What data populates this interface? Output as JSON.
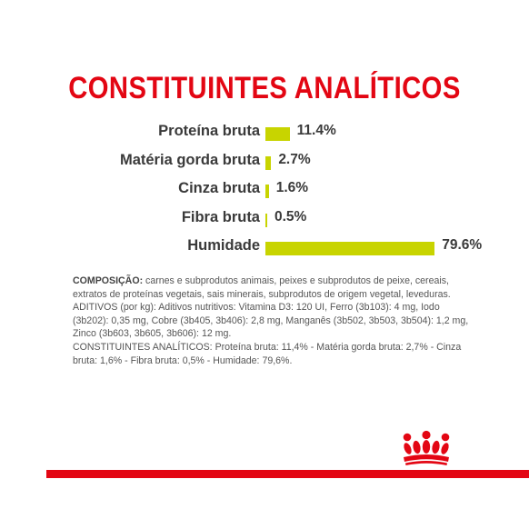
{
  "title": "CONSTITUINTES ANALÍTICOS",
  "colors": {
    "title": "#e30613",
    "bar": "#c8d400",
    "text": "#3a3a3a",
    "brand_red": "#e30613"
  },
  "chart_data": {
    "type": "bar",
    "orientation": "horizontal",
    "title": "CONSTITUINTES ANALÍTICOS",
    "categories": [
      "Proteína bruta",
      "Matéria gorda bruta",
      "Cinza bruta",
      "Fibra bruta",
      "Humidade"
    ],
    "values": [
      11.4,
      2.7,
      1.6,
      0.5,
      79.6
    ],
    "value_labels": [
      "11.4%",
      "2.7%",
      "1.6%",
      "0.5%",
      "79.6%"
    ],
    "unit": "%",
    "grid": false,
    "legend": "none"
  },
  "composition": {
    "label": "COMPOSIÇÃO:",
    "text": " carnes e subprodutos animais, peixes e subprodutos de peixe, cereais, extratos de proteínas vegetais, sais minerais, subprodutos de origem vegetal, leveduras.",
    "additives": "ADITIVOS (por kg): Aditivos nutritivos: Vitamina D3: 120 UI, Ferro (3b103): 4 mg, Iodo (3b202): 0,35 mg, Cobre (3b405, 3b406): 2,8 mg, Manganês (3b502, 3b503, 3b504): 1,2 mg, Zinco (3b603, 3b605, 3b606): 12 mg.",
    "analytical": "CONSTITUINTES ANALÍTICOS: Proteína bruta: 11,4% - Matéria gorda bruta: 2,7% - Cinza bruta: 1,6% - Fibra bruta: 0,5% - Humidade: 79,6%."
  },
  "brand": {
    "icon": "royal-canin-crown-icon"
  }
}
